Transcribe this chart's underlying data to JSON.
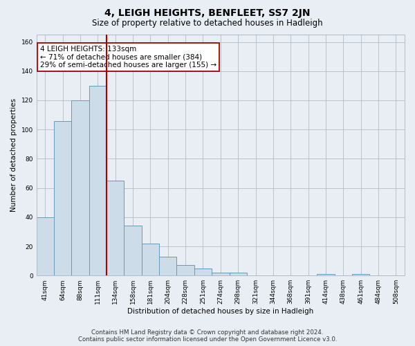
{
  "title": "4, LEIGH HEIGHTS, BENFLEET, SS7 2JN",
  "subtitle": "Size of property relative to detached houses in Hadleigh",
  "xlabel": "Distribution of detached houses by size in Hadleigh",
  "ylabel": "Number of detached properties",
  "categories": [
    "41sqm",
    "64sqm",
    "88sqm",
    "111sqm",
    "134sqm",
    "158sqm",
    "181sqm",
    "204sqm",
    "228sqm",
    "251sqm",
    "274sqm",
    "298sqm",
    "321sqm",
    "344sqm",
    "368sqm",
    "391sqm",
    "414sqm",
    "438sqm",
    "461sqm",
    "484sqm",
    "508sqm"
  ],
  "values": [
    40,
    106,
    120,
    130,
    65,
    34,
    22,
    13,
    7,
    5,
    2,
    2,
    0,
    0,
    0,
    0,
    1,
    0,
    1,
    0,
    0
  ],
  "bar_color": "#ccdce8",
  "bar_edge_color": "#6699bb",
  "vline_x_index": 3.5,
  "vline_color": "#aa0000",
  "annotation_text": "4 LEIGH HEIGHTS: 133sqm\n← 71% of detached houses are smaller (384)\n29% of semi-detached houses are larger (155) →",
  "annotation_box_color": "#ffffff",
  "annotation_box_edge": "#aa0000",
  "ylim": [
    0,
    165
  ],
  "yticks": [
    0,
    20,
    40,
    60,
    80,
    100,
    120,
    140,
    160
  ],
  "footer_line1": "Contains HM Land Registry data © Crown copyright and database right 2024.",
  "footer_line2": "Contains public sector information licensed under the Open Government Licence v3.0.",
  "bg_color": "#e8eef4",
  "plot_bg_color": "#e8eef4",
  "grid_color": "#b0bcc8",
  "title_fontsize": 10,
  "subtitle_fontsize": 8.5,
  "label_fontsize": 7.5,
  "tick_fontsize": 6.5,
  "footer_fontsize": 6.2,
  "annot_fontsize": 7.5
}
